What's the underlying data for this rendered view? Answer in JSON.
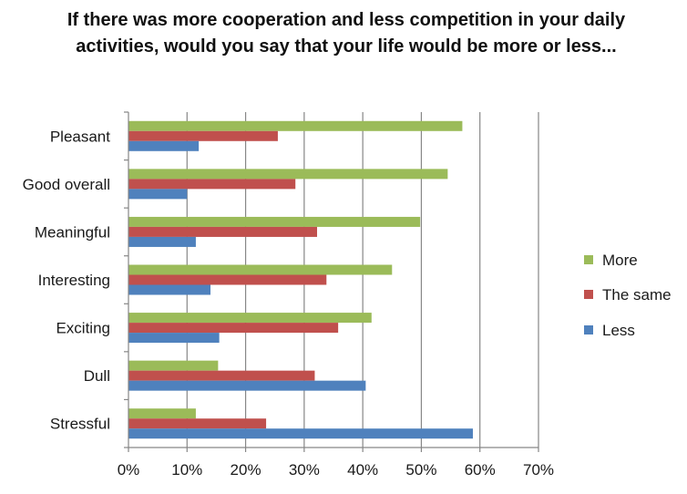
{
  "chart_data": {
    "type": "bar",
    "orientation": "horizontal",
    "title": "If there was more cooperation and less competition in your daily activities, would you say that your life would be more or less...",
    "categories": [
      "Pleasant",
      "Good overall",
      "Meaningful",
      "Interesting",
      "Exciting",
      "Dull",
      "Stressful"
    ],
    "series": [
      {
        "name": "More",
        "color": "#9bbb59",
        "values": [
          57,
          54.5,
          49.8,
          45,
          41.5,
          15.3,
          11.5
        ]
      },
      {
        "name": "The same",
        "color": "#c0504d",
        "values": [
          25.5,
          28.5,
          32.2,
          33.8,
          35.8,
          31.8,
          23.5
        ]
      },
      {
        "name": "Less",
        "color": "#4f81bd",
        "values": [
          12,
          10,
          11.5,
          14,
          15.5,
          40.5,
          58.8
        ]
      }
    ],
    "xlim": [
      0,
      70
    ],
    "xticks": [
      "0%",
      "10%",
      "20%",
      "30%",
      "40%",
      "50%",
      "60%",
      "70%"
    ],
    "grid": true,
    "legend_position": "right"
  }
}
